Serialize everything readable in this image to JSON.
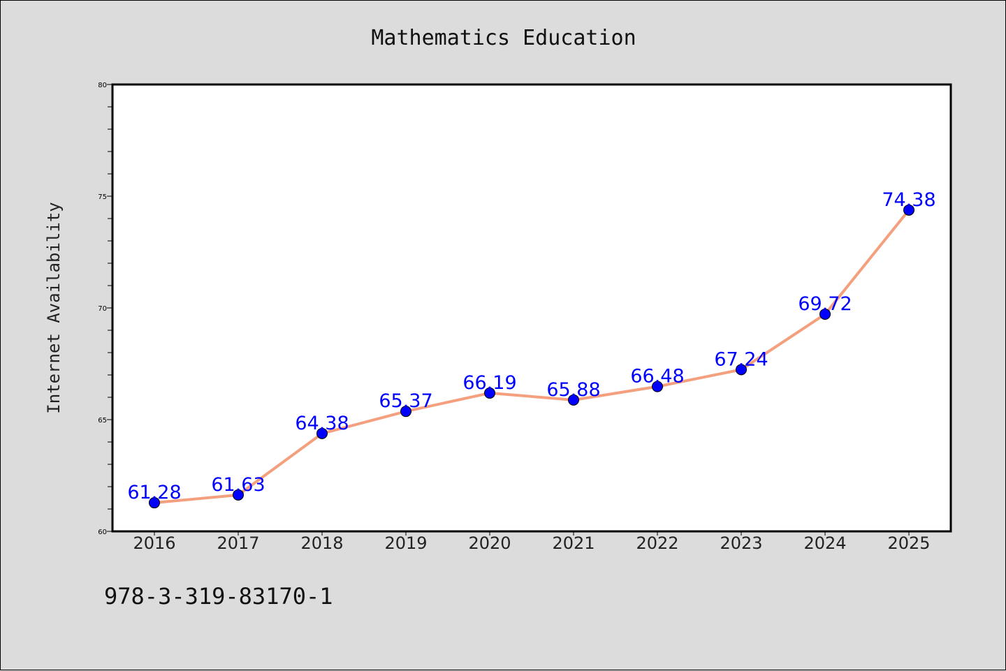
{
  "chart_data": {
    "type": "line",
    "title": "Mathematics Education",
    "xlabel": "",
    "ylabel": "Internet Availability",
    "categories": [
      "2016",
      "2017",
      "2018",
      "2019",
      "2020",
      "2021",
      "2022",
      "2023",
      "2024",
      "2025"
    ],
    "series": [
      {
        "values": [
          61.28,
          61.63,
          64.38,
          65.37,
          66.19,
          65.88,
          66.48,
          67.24,
          69.72,
          74.38
        ],
        "value_labels": [
          "61.28",
          "61.63",
          "64.38",
          "65.37",
          "66.19",
          "65.88",
          "66.48",
          "67.24",
          "69.72",
          "74.38"
        ],
        "line_color": "#f4a07e",
        "marker_color": "#0000ff",
        "label_color": "#0000ff"
      }
    ],
    "ylim": [
      60,
      80
    ],
    "y_ticks": [
      "60",
      "65",
      "70",
      "75",
      "80"
    ],
    "grid": false,
    "legend": "none"
  },
  "footer": {
    "isbn": "978-3-319-83170-1"
  },
  "colors": {
    "background": "#dcdcdc",
    "plot_background": "#ffffff"
  }
}
